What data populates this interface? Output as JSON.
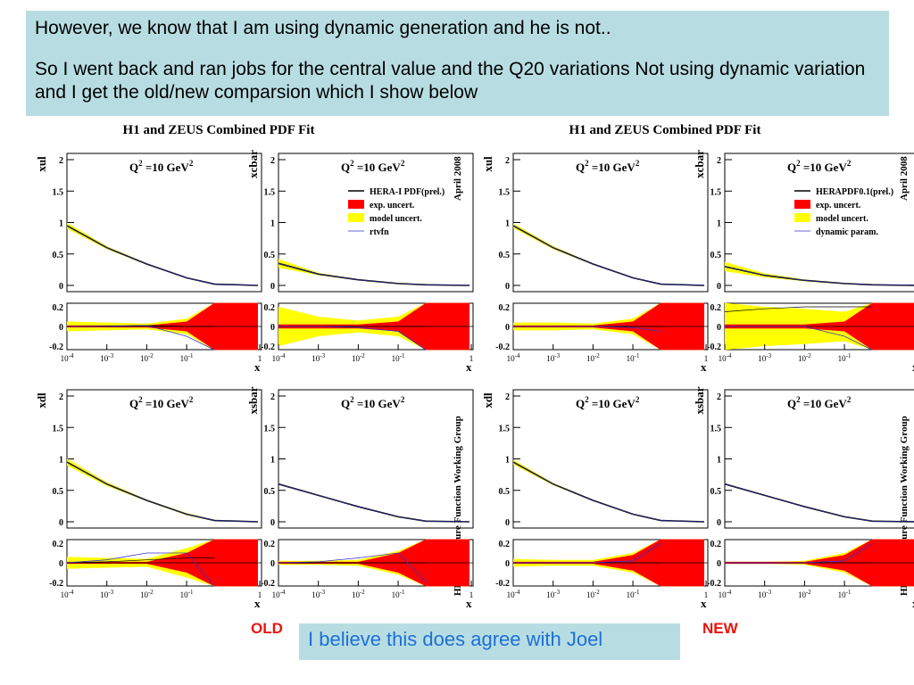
{
  "header": {
    "line1": "However, we know that I am using dynamic generation and he is not..",
    "line2": "So I went back and ran jobs for the central value and the Q20 variations Not using dynamic variation and I get the old/new comparsion which I show below"
  },
  "footer": {
    "comment": "I believe this does agree with Joel",
    "old_label": "OLD",
    "new_label": "NEW"
  },
  "colors": {
    "header_bg": "#b7dde2",
    "comment_text": "#1d6fd9",
    "label_red": "#e8150e",
    "exp_band": "#ff0000",
    "model_band": "#ffff00",
    "curve_blue": "#3333cc"
  },
  "chart_data": [
    {
      "id": "old",
      "type": "line",
      "title": "H1 and ZEUS Combined PDF Fit",
      "side_label_top": "April 2008",
      "side_label_bottom": "HERA Structure Function Working Group",
      "legend": {
        "items": [
          {
            "name": "HERA-I PDF(prel.)",
            "style": "line-black"
          },
          {
            "name": "exp. uncert.",
            "style": "box-red"
          },
          {
            "name": "model uncert.",
            "style": "box-yellow"
          },
          {
            "name": "rtvfn",
            "style": "line-blue"
          }
        ],
        "position": "top-right of xcbar panel"
      },
      "panels": [
        {
          "ylabel": "xul",
          "q2_label": "Q",
          "q2_sup": "2",
          "q2_rest": "=10 GeV",
          "q2_unit_sup": "2",
          "x": [
            0.0001,
            0.001,
            0.01,
            0.1,
            0.5,
            1
          ],
          "central": [
            0.95,
            0.6,
            0.34,
            0.12,
            0.02,
            0
          ],
          "ratio_blue": [
            0,
            0,
            0.01,
            -0.1,
            -0.4
          ],
          "ratio_black": [
            0,
            0.005,
            0.01,
            0.0,
            0.0
          ],
          "exp_ratio": [
            0.01,
            0.01,
            0.01,
            0.05,
            0.3
          ],
          "model_ratio": [
            0.05,
            0.04,
            0.03,
            0.08,
            0.3
          ],
          "ylim": [
            0,
            2
          ],
          "ratio_ylim": [
            -0.2,
            0.2
          ]
        },
        {
          "ylabel": "xcbar",
          "q2_label": "Q",
          "q2_sup": "2",
          "q2_rest": "=10 GeV",
          "q2_unit_sup": "2",
          "x": [
            0.0001,
            0.001,
            0.01,
            0.1,
            0.5,
            1
          ],
          "central": [
            0.35,
            0.18,
            0.09,
            0.03,
            0.01,
            0
          ],
          "ratio_blue": [
            0,
            0,
            -0.01,
            -0.05,
            -0.25
          ],
          "ratio_black": [
            0,
            0,
            0,
            0,
            0
          ],
          "exp_ratio": [
            0.02,
            0.02,
            0.02,
            0.05,
            0.3
          ],
          "model_ratio": [
            0.2,
            0.1,
            0.06,
            0.1,
            0.3
          ],
          "ylim": [
            0,
            2
          ],
          "ratio_ylim": [
            -0.2,
            0.2
          ]
        },
        {
          "ylabel": "xdl",
          "q2_label": "Q",
          "q2_sup": "2",
          "q2_rest": "=10 GeV",
          "q2_unit_sup": "2",
          "x": [
            0.0001,
            0.001,
            0.01,
            0.1,
            0.5,
            1
          ],
          "central": [
            0.95,
            0.6,
            0.34,
            0.12,
            0.02,
            0
          ],
          "ratio_blue": [
            0.0,
            0.03,
            0.1,
            0.1,
            -0.25
          ],
          "ratio_black": [
            0,
            0.01,
            0.03,
            0.05,
            0.05
          ],
          "exp_ratio": [
            0.01,
            0.01,
            0.01,
            0.1,
            0.3
          ],
          "model_ratio": [
            0.06,
            0.05,
            0.04,
            0.15,
            0.3
          ],
          "ylim": [
            0,
            2
          ],
          "ratio_ylim": [
            -0.2,
            0.2
          ]
        },
        {
          "ylabel": "xsbar",
          "q2_label": "Q",
          "q2_sup": "2",
          "q2_rest": "=10 GeV",
          "q2_unit_sup": "2",
          "x": [
            0.0001,
            0.001,
            0.01,
            0.1,
            0.5,
            1
          ],
          "central": [
            0.6,
            0.42,
            0.24,
            0.08,
            0.01,
            0
          ],
          "ratio_blue": [
            0,
            0.01,
            0.05,
            0.1,
            -0.2
          ],
          "ratio_black": [
            0,
            0,
            0,
            0,
            0
          ],
          "exp_ratio": [
            0.01,
            0.01,
            0.01,
            0.1,
            0.3
          ],
          "model_ratio": [
            0.02,
            0.02,
            0.03,
            0.12,
            0.3
          ],
          "ylim": [
            0,
            2
          ],
          "ratio_ylim": [
            -0.2,
            0.2
          ]
        }
      ],
      "xlabel": "x",
      "x_ticks": [
        "10",
        "10",
        "10",
        "10",
        "1"
      ],
      "x_tick_exps": [
        "-4",
        "-3",
        "-2",
        "-1",
        ""
      ],
      "y_ticks": [
        "0",
        "0.5",
        "1",
        "1.5",
        "2"
      ],
      "ratio_ticks": [
        "0.2",
        "0",
        "-0.2"
      ]
    },
    {
      "id": "new",
      "type": "line",
      "title": "H1 and ZEUS Combined PDF Fit",
      "side_label_top": "April 2008",
      "side_label_bottom": "HERA Structure Function Working Group",
      "legend": {
        "items": [
          {
            "name": "HERAPDF0.1(prel.)",
            "style": "line-black"
          },
          {
            "name": "exp. uncert.",
            "style": "box-red"
          },
          {
            "name": "model uncert.",
            "style": "box-yellow"
          },
          {
            "name": "dynamic param.",
            "style": "line-blue"
          }
        ],
        "position": "top-right of xcbar panel"
      },
      "panels": [
        {
          "ylabel": "xul",
          "q2_label": "Q",
          "q2_sup": "2",
          "q2_rest": "=10 GeV",
          "q2_unit_sup": "2",
          "x": [
            0.0001,
            0.001,
            0.01,
            0.1,
            0.5,
            1
          ],
          "central": [
            0.95,
            0.6,
            0.34,
            0.12,
            0.02,
            0
          ],
          "ratio_blue": [
            0,
            0,
            0,
            -0.01,
            -0.05
          ],
          "ratio_black": [
            0,
            0,
            0,
            0,
            0
          ],
          "exp_ratio": [
            0.01,
            0.01,
            0.01,
            0.05,
            0.3
          ],
          "model_ratio": [
            0.04,
            0.04,
            0.03,
            0.08,
            0.3
          ],
          "ylim": [
            0,
            2
          ],
          "ratio_ylim": [
            -0.2,
            0.2
          ]
        },
        {
          "ylabel": "xcbar",
          "q2_label": "Q",
          "q2_sup": "2",
          "q2_rest": "=10 GeV",
          "q2_unit_sup": "2",
          "x": [
            0.0001,
            0.001,
            0.01,
            0.1,
            0.5,
            1
          ],
          "central": [
            0.3,
            0.16,
            0.08,
            0.03,
            0.01,
            0
          ],
          "ratio_blue": [
            0.0,
            0.0,
            0.0,
            -0.1,
            -0.25
          ],
          "ratio_black": [
            0.15,
            0.18,
            0.2,
            0.2,
            0.2
          ],
          "exp_ratio": [
            0.02,
            0.02,
            0.02,
            0.05,
            0.3
          ],
          "model_ratio": [
            0.25,
            0.2,
            0.18,
            0.15,
            0.3
          ],
          "ylim": [
            0,
            2
          ],
          "ratio_ylim": [
            -0.2,
            0.2
          ]
        },
        {
          "ylabel": "xdl",
          "q2_label": "Q",
          "q2_sup": "2",
          "q2_rest": "=10 GeV",
          "q2_unit_sup": "2",
          "x": [
            0.0001,
            0.001,
            0.01,
            0.1,
            0.5,
            1
          ],
          "central": [
            0.95,
            0.6,
            0.34,
            0.12,
            0.02,
            0
          ],
          "ratio_blue": [
            0,
            0,
            0,
            0.02,
            0.2
          ],
          "ratio_black": [
            0,
            0,
            0,
            0,
            0
          ],
          "exp_ratio": [
            0.01,
            0.01,
            0.01,
            0.08,
            0.3
          ],
          "model_ratio": [
            0.04,
            0.03,
            0.03,
            0.1,
            0.3
          ],
          "ylim": [
            0,
            2
          ],
          "ratio_ylim": [
            -0.2,
            0.2
          ]
        },
        {
          "ylabel": "xsbar",
          "q2_label": "Q",
          "q2_sup": "2",
          "q2_rest": "=10 GeV",
          "q2_unit_sup": "2",
          "x": [
            0.0001,
            0.001,
            0.01,
            0.1,
            0.5,
            1
          ],
          "central": [
            0.6,
            0.42,
            0.24,
            0.08,
            0.01,
            0
          ],
          "ratio_blue": [
            0,
            0,
            0,
            0.02,
            0.2
          ],
          "ratio_black": [
            0,
            0,
            0,
            0,
            0
          ],
          "exp_ratio": [
            0.01,
            0.01,
            0.01,
            0.08,
            0.3
          ],
          "model_ratio": [
            0.01,
            0.01,
            0.02,
            0.1,
            0.3
          ],
          "ylim": [
            0,
            2
          ],
          "ratio_ylim": [
            -0.2,
            0.2
          ]
        }
      ],
      "xlabel": "x",
      "x_ticks": [
        "10",
        "10",
        "10",
        "10",
        "1"
      ],
      "x_tick_exps": [
        "-4",
        "-3",
        "-2",
        "-1",
        ""
      ],
      "y_ticks": [
        "0",
        "0.5",
        "1",
        "1.5",
        "2"
      ],
      "ratio_ticks": [
        "0.2",
        "0",
        "-0.2"
      ]
    }
  ]
}
